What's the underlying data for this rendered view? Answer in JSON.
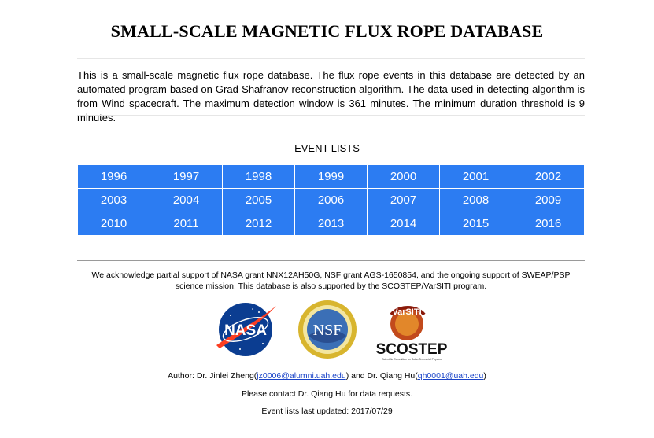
{
  "page": {
    "title": "SMALL-SCALE MAGNETIC FLUX ROPE DATABASE",
    "intro": "This is a small-scale magnetic flux rope database. The flux rope events in this database are detected by an automated program based on Grad-Shafranov reconstruction algorithm. The data used in detecting algorithm is from Wind spacecraft. The maximum detection window is 361 minutes. The minimum duration threshold is 9 minutes.",
    "event_lists_heading": "EVENT LISTS",
    "years": [
      "1996",
      "1997",
      "1998",
      "1999",
      "2000",
      "2001",
      "2002",
      "2003",
      "2004",
      "2005",
      "2006",
      "2007",
      "2008",
      "2009",
      "2010",
      "2011",
      "2012",
      "2013",
      "2014",
      "2015",
      "2016"
    ],
    "acknowledgement": "We acknowledge partial support of NASA grant NNX12AH50G, NSF grant AGS-1650854, and the ongoing support of SWEAP/PSP science mission. This database is also supported by the SCOSTEP/VarSITI program.",
    "logos": {
      "nasa": "NASA",
      "nsf": "NSF",
      "varsiti": "VarSITI",
      "scostep": "SCOSTEP",
      "scostep_sub": "Scientific Committee on Solar-Terrestrial Physics"
    },
    "author": {
      "prefix": "Author: Dr. Jinlei Zheng(",
      "email1": "jz0006@alumni.uah.edu",
      "middle": ") and Dr. Qiang Hu(",
      "email2": "qh0001@uah.edu",
      "suffix": ")"
    },
    "contact": "Please contact Dr. Qiang Hu for data requests.",
    "updated": "Event lists last updated: 2017/07/29"
  },
  "colors": {
    "cell_bg": "#2c7cf2",
    "link": "#1a44c8"
  }
}
